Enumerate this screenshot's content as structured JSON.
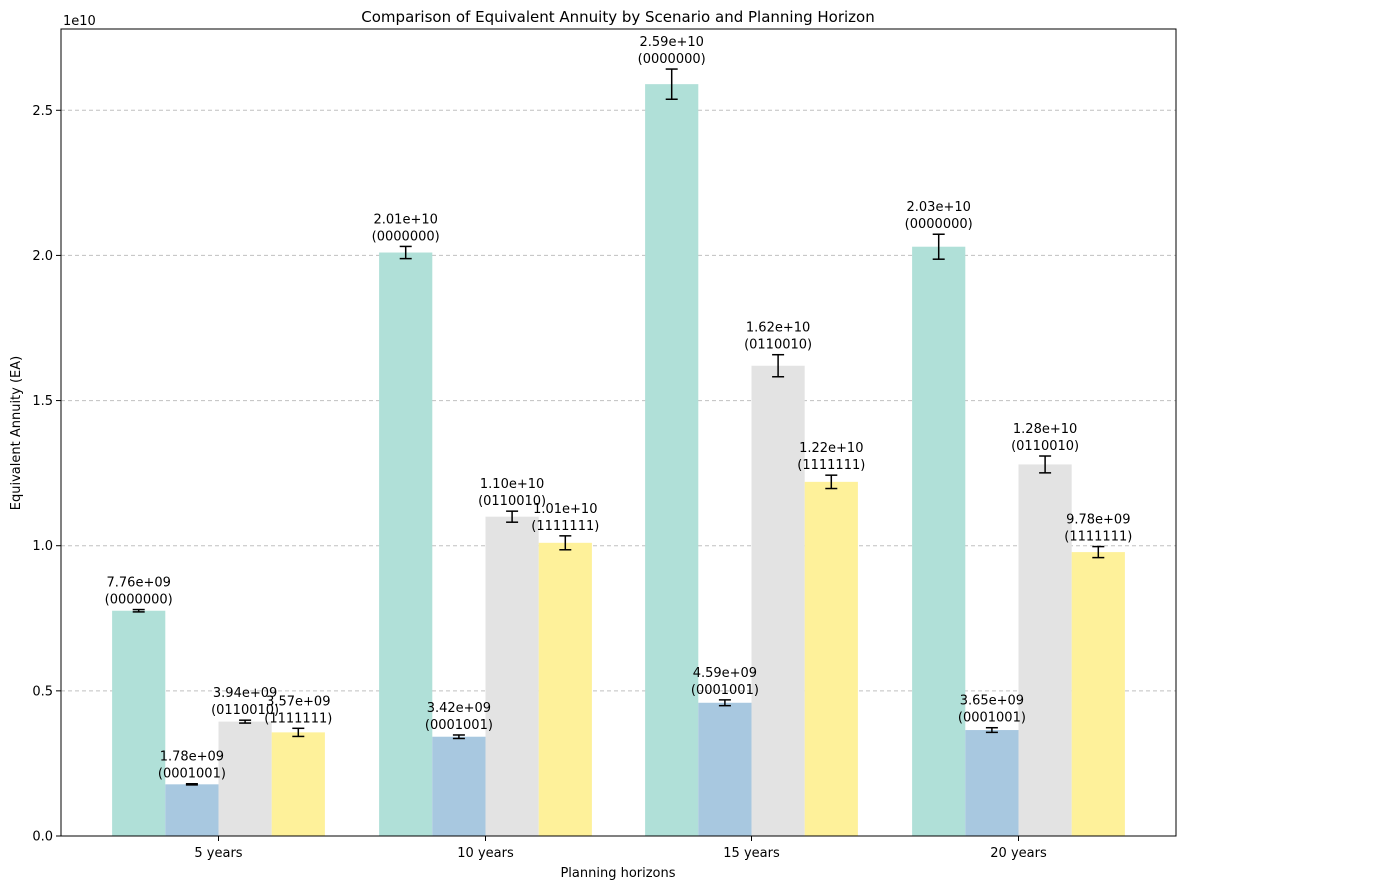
{
  "chart_data": {
    "type": "bar",
    "title": "Comparison of Equivalent Annuity by Scenario and Planning Horizon",
    "xlabel": "Planning horizons",
    "ylabel": "Equivalent Annuity (EA)",
    "y_offset_text": "1e10",
    "y_scale": 10000000000,
    "ylim": [
      0,
      2.78
    ],
    "yticks": [
      0.0,
      0.5,
      1.0,
      1.5,
      2.0,
      2.5
    ],
    "ytick_labels": [
      "0.0",
      "0.5",
      "1.0",
      "1.5",
      "2.0",
      "2.5"
    ],
    "grid": "y-dashed",
    "categories": [
      "5 years",
      "10 years",
      "15 years",
      "20 years"
    ],
    "series": [
      {
        "color": "#b0e0d8",
        "scenario": "0000000",
        "values": [
          7760000000.0,
          20100000000.0,
          25900000000.0,
          20300000000.0
        ],
        "errors": [
          40000000.0,
          210000000.0,
          520000000.0,
          430000000.0
        ],
        "value_labels": [
          "7.76e+09",
          "2.01e+10",
          "2.59e+10",
          "2.03e+10"
        ],
        "scenario_labels": [
          "(0000000)",
          "(0000000)",
          "(0000000)",
          "(0000000)"
        ]
      },
      {
        "color": "#a8c8e0",
        "scenario": "0001001",
        "values": [
          1780000000.0,
          3420000000.0,
          4590000000.0,
          3650000000.0
        ],
        "errors": [
          20000000.0,
          60000000.0,
          100000000.0,
          80000000.0
        ],
        "value_labels": [
          "1.78e+09",
          "3.42e+09",
          "4.59e+09",
          "3.65e+09"
        ],
        "scenario_labels": [
          "(0001001)",
          "(0001001)",
          "(0001001)",
          "(0001001)"
        ]
      },
      {
        "color": "#e3e3e3",
        "scenario": "0110010",
        "values": [
          3940000000.0,
          11000000000.0,
          16200000000.0,
          12800000000.0
        ],
        "errors": [
          50000000.0,
          190000000.0,
          380000000.0,
          290000000.0
        ],
        "value_labels": [
          "3.94e+09",
          "1.10e+10",
          "1.62e+10",
          "1.28e+10"
        ],
        "scenario_labels": [
          "(0110010)",
          "(0110010)",
          "(0110010)",
          "(0110010)"
        ]
      },
      {
        "color": "#fef19a",
        "scenario": "1111111",
        "values": [
          3570000000.0,
          10100000000.0,
          12200000000.0,
          9780000000.0
        ],
        "errors": [
          140000000.0,
          240000000.0,
          230000000.0,
          190000000.0
        ],
        "value_labels": [
          "3.57e+09",
          "1.01e+10",
          "1.22e+10",
          "9.78e+09"
        ],
        "scenario_labels": [
          "(1111111)",
          "(1111111)",
          "(1111111)",
          "(1111111)"
        ]
      }
    ]
  }
}
